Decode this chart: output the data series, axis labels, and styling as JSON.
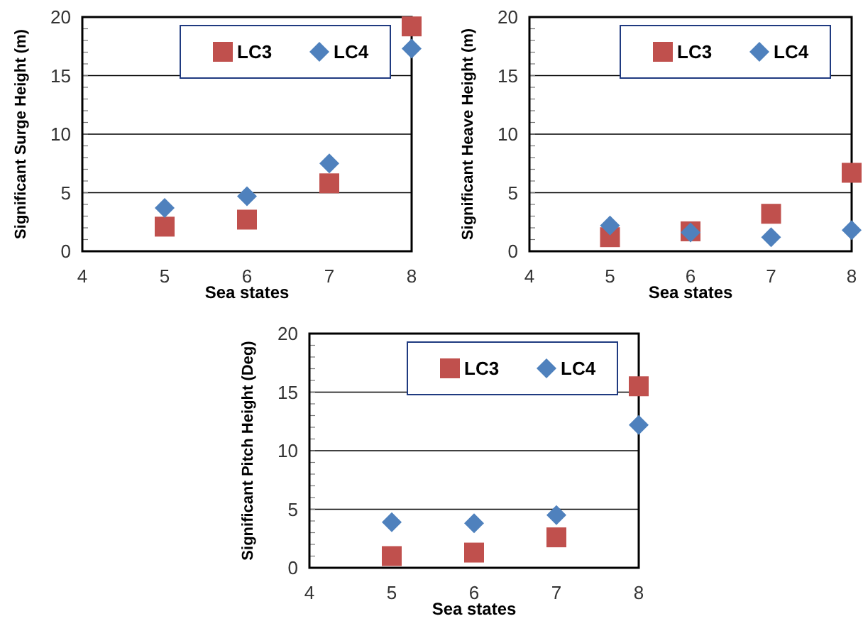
{
  "chart_data": [
    {
      "type": "scatter",
      "xlabel": "Sea states",
      "ylabel": "Significant Surge Height (m)",
      "x": [
        5,
        6,
        7,
        8
      ],
      "xlim": [
        4,
        8
      ],
      "xticks": [
        4,
        5,
        6,
        7,
        8
      ],
      "ylim": [
        0,
        20
      ],
      "yticks": [
        0,
        5,
        10,
        15,
        20
      ],
      "grid": "y",
      "legend": "top right",
      "series": [
        {
          "name": "LC3",
          "color": "#c0504d",
          "marker": "square",
          "values": [
            2.1,
            2.7,
            5.8,
            19.2
          ]
        },
        {
          "name": "LC4",
          "color": "#4f81bd",
          "marker": "diamond",
          "values": [
            3.7,
            4.7,
            7.5,
            17.3
          ]
        }
      ]
    },
    {
      "type": "scatter",
      "xlabel": "Sea states",
      "ylabel": "Significant Heave Height (m)",
      "x": [
        5,
        6,
        7,
        8
      ],
      "xlim": [
        4,
        8
      ],
      "xticks": [
        4,
        5,
        6,
        7,
        8
      ],
      "ylim": [
        0,
        20
      ],
      "yticks": [
        0,
        5,
        10,
        15,
        20
      ],
      "grid": "y",
      "legend": "top right",
      "series": [
        {
          "name": "LC3",
          "color": "#c0504d",
          "marker": "square",
          "values": [
            1.2,
            1.7,
            3.2,
            6.7
          ]
        },
        {
          "name": "LC4",
          "color": "#4f81bd",
          "marker": "diamond",
          "values": [
            2.2,
            1.6,
            1.2,
            1.8
          ]
        }
      ]
    },
    {
      "type": "scatter",
      "xlabel": "Sea states",
      "ylabel": "Significant Pitch Height (Deg)",
      "x": [
        5,
        6,
        7,
        8
      ],
      "xlim": [
        4,
        8
      ],
      "xticks": [
        4,
        5,
        6,
        7,
        8
      ],
      "ylim": [
        0,
        20
      ],
      "yticks": [
        0,
        5,
        10,
        15,
        20
      ],
      "grid": "y",
      "legend": "top right",
      "series": [
        {
          "name": "LC3",
          "color": "#c0504d",
          "marker": "square",
          "values": [
            1.0,
            1.3,
            2.6,
            15.5
          ]
        },
        {
          "name": "LC4",
          "color": "#4f81bd",
          "marker": "diamond",
          "values": [
            3.9,
            3.8,
            4.5,
            12.2
          ]
        }
      ]
    }
  ]
}
